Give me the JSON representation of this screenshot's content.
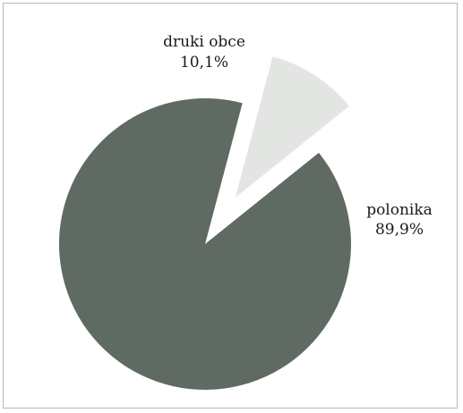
{
  "chart_data": {
    "type": "pie",
    "title": "",
    "slices": [
      {
        "label": "druki obce",
        "value": 10.1,
        "value_label": "10,1%",
        "color": "#e3e5e3",
        "exploded": true
      },
      {
        "label": "polonika",
        "value": 89.9,
        "value_label": "89,9%",
        "color": "#5f6a63",
        "exploded": false
      }
    ],
    "legend": "none"
  }
}
